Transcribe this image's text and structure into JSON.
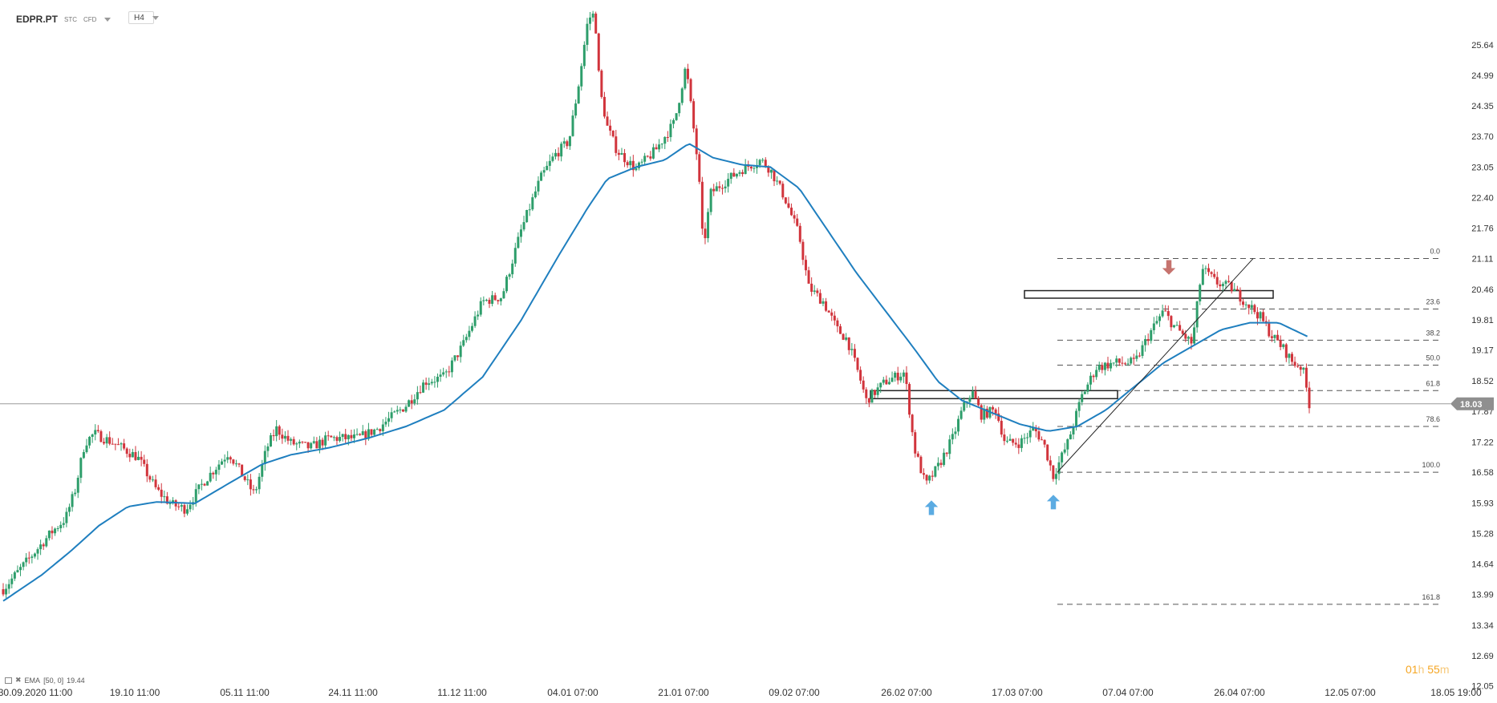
{
  "header": {
    "symbol": "EDPR.PT",
    "badges": [
      "STC",
      "CFD"
    ],
    "timeframe": "H4"
  },
  "indicator": {
    "label": "EMA",
    "params": "[50, 0]",
    "value": "19.44",
    "color": "#1f77b4"
  },
  "timer": {
    "hours": "01",
    "h": "h",
    "minutes": "55",
    "m": "m"
  },
  "colors": {
    "up": "#2e9e6b",
    "down": "#d1343c",
    "ema": "#1f7fbf",
    "grid": "#999999"
  },
  "chart_data": {
    "type": "candlestick",
    "ylim": [
      12.05,
      26.3
    ],
    "y_ticks": [
      25.64,
      24.99,
      24.35,
      23.7,
      23.05,
      22.4,
      21.76,
      21.11,
      20.46,
      19.81,
      19.17,
      18.52,
      17.87,
      17.22,
      16.58,
      15.93,
      15.28,
      14.64,
      13.99,
      13.34,
      12.69,
      12.05
    ],
    "x_ticks": [
      "30.09.2020  11:00",
      "19.10  11:00",
      "05.11  11:00",
      "24.11  11:00",
      "11.12  11:00",
      "04.01  07:00",
      "21.01  07:00",
      "09.02  07:00",
      "26.02  07:00",
      "17.03  07:00",
      "07.04  07:00",
      "26.04  07:00",
      "12.05  07:00",
      "18.05  19:00"
    ],
    "current_price": "18.03",
    "price_anchors": [
      [
        0,
        14.1
      ],
      [
        25,
        14.7
      ],
      [
        50,
        15.3
      ],
      [
        65,
        15.6
      ],
      [
        75,
        16.2
      ],
      [
        85,
        17.2
      ],
      [
        95,
        17.4
      ],
      [
        115,
        17.2
      ],
      [
        140,
        16.9
      ],
      [
        160,
        16.2
      ],
      [
        175,
        15.9
      ],
      [
        190,
        15.8
      ],
      [
        210,
        16.4
      ],
      [
        235,
        17.0
      ],
      [
        250,
        16.5
      ],
      [
        262,
        16.1
      ],
      [
        275,
        17.1
      ],
      [
        285,
        17.5
      ],
      [
        300,
        17.2
      ],
      [
        320,
        17.1
      ],
      [
        340,
        17.3
      ],
      [
        370,
        17.3
      ],
      [
        390,
        17.5
      ],
      [
        420,
        18.0
      ],
      [
        440,
        18.5
      ],
      [
        460,
        18.6
      ],
      [
        480,
        19.3
      ],
      [
        500,
        20.2
      ],
      [
        520,
        20.3
      ],
      [
        540,
        21.7
      ],
      [
        560,
        22.8
      ],
      [
        575,
        23.3
      ],
      [
        590,
        23.6
      ],
      [
        600,
        24.8
      ],
      [
        610,
        26.2
      ],
      [
        617,
        26.3
      ],
      [
        622,
        24.7
      ],
      [
        630,
        23.9
      ],
      [
        640,
        23.4
      ],
      [
        660,
        23.0
      ],
      [
        680,
        23.4
      ],
      [
        700,
        24.0
      ],
      [
        712,
        25.2
      ],
      [
        718,
        24.2
      ],
      [
        725,
        23.0
      ],
      [
        730,
        21.3
      ],
      [
        738,
        22.5
      ],
      [
        750,
        22.7
      ],
      [
        770,
        23.0
      ],
      [
        790,
        23.2
      ],
      [
        800,
        23.0
      ],
      [
        815,
        22.4
      ],
      [
        830,
        21.6
      ],
      [
        840,
        20.5
      ],
      [
        855,
        20.2
      ],
      [
        870,
        19.6
      ],
      [
        880,
        19.4
      ],
      [
        893,
        18.6
      ],
      [
        900,
        18.1
      ],
      [
        920,
        18.5
      ],
      [
        940,
        18.7
      ],
      [
        950,
        17.1
      ],
      [
        962,
        16.3
      ],
      [
        975,
        16.7
      ],
      [
        990,
        17.3
      ],
      [
        1000,
        17.9
      ],
      [
        1010,
        18.3
      ],
      [
        1020,
        17.8
      ],
      [
        1035,
        17.9
      ],
      [
        1045,
        17.2
      ],
      [
        1060,
        17.2
      ],
      [
        1075,
        17.5
      ],
      [
        1085,
        17.2
      ],
      [
        1095,
        16.5
      ],
      [
        1110,
        17.2
      ],
      [
        1125,
        18.2
      ],
      [
        1140,
        18.8
      ],
      [
        1160,
        18.9
      ],
      [
        1180,
        18.9
      ],
      [
        1195,
        19.5
      ],
      [
        1210,
        20.0
      ],
      [
        1220,
        19.7
      ],
      [
        1240,
        19.3
      ],
      [
        1250,
        20.9
      ],
      [
        1265,
        20.6
      ],
      [
        1280,
        20.5
      ],
      [
        1295,
        20.2
      ],
      [
        1310,
        19.9
      ],
      [
        1322,
        19.5
      ],
      [
        1335,
        19.2
      ],
      [
        1345,
        18.9
      ],
      [
        1355,
        18.8
      ],
      [
        1362,
        18.03
      ]
    ],
    "ema_anchors": [
      [
        0,
        13.85
      ],
      [
        40,
        14.4
      ],
      [
        70,
        14.9
      ],
      [
        100,
        15.45
      ],
      [
        130,
        15.85
      ],
      [
        160,
        15.95
      ],
      [
        200,
        15.92
      ],
      [
        240,
        16.4
      ],
      [
        270,
        16.75
      ],
      [
        300,
        16.95
      ],
      [
        340,
        17.1
      ],
      [
        380,
        17.3
      ],
      [
        420,
        17.55
      ],
      [
        460,
        17.9
      ],
      [
        500,
        18.6
      ],
      [
        540,
        19.8
      ],
      [
        580,
        21.2
      ],
      [
        610,
        22.2
      ],
      [
        630,
        22.8
      ],
      [
        660,
        23.05
      ],
      [
        690,
        23.2
      ],
      [
        715,
        23.55
      ],
      [
        740,
        23.25
      ],
      [
        770,
        23.1
      ],
      [
        800,
        23.05
      ],
      [
        830,
        22.6
      ],
      [
        860,
        21.7
      ],
      [
        890,
        20.8
      ],
      [
        920,
        20.0
      ],
      [
        950,
        19.2
      ],
      [
        975,
        18.5
      ],
      [
        1000,
        18.1
      ],
      [
        1030,
        17.85
      ],
      [
        1060,
        17.6
      ],
      [
        1090,
        17.45
      ],
      [
        1120,
        17.55
      ],
      [
        1150,
        17.9
      ],
      [
        1180,
        18.4
      ],
      [
        1210,
        18.9
      ],
      [
        1240,
        19.25
      ],
      [
        1270,
        19.6
      ],
      [
        1300,
        19.75
      ],
      [
        1330,
        19.75
      ],
      [
        1362,
        19.44
      ]
    ],
    "fibonacci": {
      "high": 21.11,
      "low": 16.58,
      "levels": [
        {
          "label": "0.0",
          "value": 21.11
        },
        {
          "label": "23.6",
          "value": 20.04
        },
        {
          "label": "38.2",
          "value": 19.38
        },
        {
          "label": "50.0",
          "value": 18.85
        },
        {
          "label": "61.8",
          "value": 18.31
        },
        {
          "label": "78.6",
          "value": 17.55
        },
        {
          "label": "100.0",
          "value": 16.58
        },
        {
          "label": "161.8",
          "value": 13.78
        }
      ]
    },
    "zones": [
      {
        "name": "resistance-zone",
        "from": 20.27,
        "to": 20.43
      },
      {
        "name": "support-zone",
        "from": 18.14,
        "to": 18.31
      }
    ],
    "trendline": {
      "from": 16.58,
      "to": 21.11
    },
    "markers": [
      {
        "name": "arrow-up-1",
        "direction": "up",
        "color": "#4aa3df"
      },
      {
        "name": "arrow-up-2",
        "direction": "up",
        "color": "#4aa3df"
      },
      {
        "name": "arrow-down-1",
        "direction": "down",
        "color": "#c0645f"
      }
    ]
  }
}
